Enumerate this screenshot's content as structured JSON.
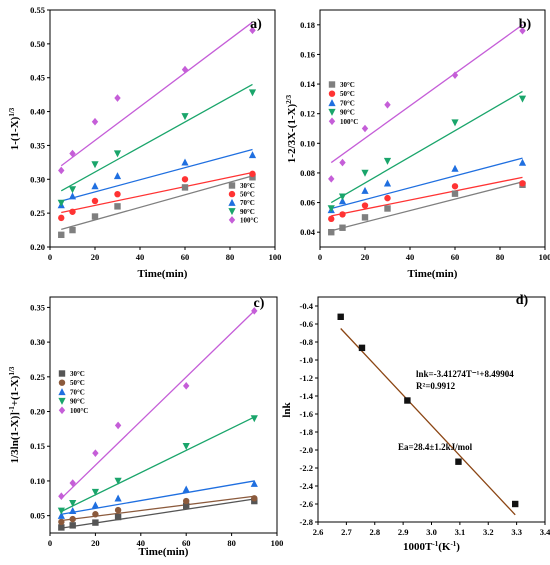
{
  "chart_data": [
    {
      "panel": "a)",
      "type": "scatter",
      "xlabel": "Time(min)",
      "ylabel": "1-(1-X)^(1/3)",
      "xlim": [
        0,
        100
      ],
      "ylim": [
        0.2,
        0.55
      ],
      "xticks": [
        "0",
        "20",
        "40",
        "60",
        "80",
        "100"
      ],
      "yticks": [
        "0.20",
        "0.25",
        "0.30",
        "0.35",
        "0.40",
        "0.45",
        "0.50",
        "0.55"
      ],
      "legend_position": "bottom-right",
      "series": [
        {
          "name": "30°C",
          "color": "#7f7f7f",
          "marker": "square",
          "x": [
            5,
            10,
            20,
            30,
            60,
            90
          ],
          "y": [
            0.218,
            0.225,
            0.245,
            0.26,
            0.288,
            0.303
          ],
          "fit": [
            [
              5,
              0.226
            ],
            [
              90,
              0.305
            ]
          ]
        },
        {
          "name": "50°C",
          "color": "#ff3333",
          "marker": "circle",
          "x": [
            5,
            10,
            20,
            30,
            60,
            90
          ],
          "y": [
            0.243,
            0.252,
            0.268,
            0.278,
            0.3,
            0.308
          ],
          "fit": [
            [
              5,
              0.251
            ],
            [
              90,
              0.31
            ]
          ]
        },
        {
          "name": "70°C",
          "color": "#1f6fe0",
          "marker": "triangle-up",
          "x": [
            5,
            10,
            20,
            30,
            60,
            90
          ],
          "y": [
            0.262,
            0.275,
            0.29,
            0.305,
            0.325,
            0.336
          ],
          "fit": [
            [
              5,
              0.268
            ],
            [
              90,
              0.344
            ]
          ]
        },
        {
          "name": "90°C",
          "color": "#1aa56b",
          "marker": "triangle-down",
          "x": [
            5,
            10,
            20,
            30,
            60,
            90
          ],
          "y": [
            0.265,
            0.285,
            0.322,
            0.338,
            0.393,
            0.428
          ],
          "fit": [
            [
              5,
              0.283
            ],
            [
              90,
              0.44
            ]
          ]
        },
        {
          "name": "100°C",
          "color": "#c55ed8",
          "marker": "diamond",
          "x": [
            5,
            10,
            20,
            30,
            60,
            90
          ],
          "y": [
            0.313,
            0.338,
            0.385,
            0.42,
            0.462,
            0.52
          ],
          "fit": [
            [
              5,
              0.32
            ],
            [
              90,
              0.532
            ]
          ]
        }
      ]
    },
    {
      "panel": "b)",
      "type": "scatter",
      "xlabel": "Time(min)",
      "ylabel": "1-2/3X-(1-X)^(2/3)",
      "xlim": [
        0,
        100
      ],
      "ylim": [
        0.03,
        0.19
      ],
      "xticks": [
        "0",
        "20",
        "40",
        "60",
        "80",
        "100"
      ],
      "yticks": [
        "0.04",
        "0.06",
        "0.08",
        "0.10",
        "0.12",
        "0.14",
        "0.16",
        "0.18"
      ],
      "legend_position": "top-left",
      "series": [
        {
          "name": "30°C",
          "color": "#7f7f7f",
          "marker": "square",
          "x": [
            5,
            10,
            20,
            30,
            60,
            90
          ],
          "y": [
            0.04,
            0.043,
            0.05,
            0.056,
            0.066,
            0.072
          ],
          "fit": [
            [
              5,
              0.041
            ],
            [
              90,
              0.074
            ]
          ]
        },
        {
          "name": "50°C",
          "color": "#ff3333",
          "marker": "circle",
          "x": [
            5,
            10,
            20,
            30,
            60,
            90
          ],
          "y": [
            0.049,
            0.052,
            0.058,
            0.063,
            0.071,
            0.073
          ],
          "fit": [
            [
              5,
              0.051
            ],
            [
              90,
              0.077
            ]
          ]
        },
        {
          "name": "70°C",
          "color": "#1f6fe0",
          "marker": "triangle-up",
          "x": [
            5,
            10,
            20,
            30,
            60,
            90
          ],
          "y": [
            0.055,
            0.061,
            0.068,
            0.073,
            0.083,
            0.087
          ],
          "fit": [
            [
              5,
              0.056
            ],
            [
              90,
              0.09
            ]
          ]
        },
        {
          "name": "90°C",
          "color": "#1aa56b",
          "marker": "triangle-down",
          "x": [
            5,
            10,
            20,
            30,
            60,
            90
          ],
          "y": [
            0.056,
            0.064,
            0.08,
            0.088,
            0.114,
            0.13
          ],
          "fit": [
            [
              5,
              0.06
            ],
            [
              90,
              0.135
            ]
          ]
        },
        {
          "name": "100°C",
          "color": "#c55ed8",
          "marker": "diamond",
          "x": [
            5,
            10,
            20,
            30,
            60,
            90
          ],
          "y": [
            0.076,
            0.087,
            0.11,
            0.126,
            0.146,
            0.176
          ],
          "fit": [
            [
              5,
              0.087
            ],
            [
              90,
              0.18
            ]
          ]
        }
      ]
    },
    {
      "panel": "c)",
      "type": "scatter",
      "xlabel": "Time(min)",
      "ylabel": "1/3ln(1-X)]^-1+(1-X)^(1/3)",
      "xlim": [
        0,
        100
      ],
      "ylim": [
        0.025,
        0.365
      ],
      "xticks": [
        "0",
        "20",
        "40",
        "60",
        "80",
        "100"
      ],
      "yticks": [
        "0.05",
        "0.10",
        "0.15",
        "0.20",
        "0.25",
        "0.30",
        "0.35"
      ],
      "legend_position": "middle-left",
      "series": [
        {
          "name": "30°C",
          "color": "#555555",
          "marker": "square",
          "x": [
            5,
            10,
            20,
            30,
            60,
            90
          ],
          "y": [
            0.033,
            0.036,
            0.04,
            0.048,
            0.064,
            0.071
          ],
          "fit": [
            [
              5,
              0.032
            ],
            [
              90,
              0.074
            ]
          ]
        },
        {
          "name": "50°C",
          "color": "#8b5a3c",
          "marker": "circle",
          "x": [
            5,
            10,
            20,
            30,
            60,
            90
          ],
          "y": [
            0.041,
            0.045,
            0.052,
            0.058,
            0.071,
            0.075
          ],
          "fit": [
            [
              5,
              0.043
            ],
            [
              90,
              0.078
            ]
          ]
        },
        {
          "name": "70°C",
          "color": "#1f6fe0",
          "marker": "triangle-up",
          "x": [
            5,
            10,
            20,
            30,
            60,
            90
          ],
          "y": [
            0.05,
            0.057,
            0.065,
            0.075,
            0.088,
            0.096
          ],
          "fit": [
            [
              5,
              0.052
            ],
            [
              90,
              0.1
            ]
          ]
        },
        {
          "name": "90°C",
          "color": "#1aa56b",
          "marker": "triangle-down",
          "x": [
            5,
            10,
            20,
            30,
            60,
            90
          ],
          "y": [
            0.057,
            0.068,
            0.084,
            0.1,
            0.15,
            0.19
          ],
          "fit": [
            [
              5,
              0.056
            ],
            [
              90,
              0.192
            ]
          ]
        },
        {
          "name": "100°C",
          "color": "#c55ed8",
          "marker": "diamond",
          "x": [
            5,
            10,
            20,
            30,
            60,
            90
          ],
          "y": [
            0.078,
            0.097,
            0.14,
            0.18,
            0.237,
            0.345
          ],
          "fit": [
            [
              5,
              0.075
            ],
            [
              90,
              0.345
            ]
          ]
        }
      ]
    },
    {
      "panel": "d)",
      "type": "scatter",
      "xlabel": "1000T^-1(K^-1)",
      "ylabel": "lnk",
      "xlim": [
        2.6,
        3.4
      ],
      "ylim": [
        -2.8,
        -0.3
      ],
      "xticks": [
        "2.6",
        "2.7",
        "2.8",
        "2.9",
        "3.0",
        "3.1",
        "3.2",
        "3.3",
        "3.4"
      ],
      "yticks": [
        "-0.4",
        "-0.6",
        "-0.8",
        "-1.0",
        "-1.2",
        "-1.4",
        "-1.6",
        "-1.8",
        "-2.0",
        "-2.2",
        "-2.4",
        "-2.6",
        "-2.8"
      ],
      "series": [
        {
          "name": "",
          "color": "#111111",
          "marker": "square",
          "x": [
            2.68,
            2.755,
            2.915,
            3.095,
            3.295
          ],
          "y": [
            -0.52,
            -0.865,
            -1.45,
            -2.13,
            -2.6
          ],
          "fit": [
            [
              2.68,
              -0.65
            ],
            [
              3.295,
              -2.72
            ]
          ],
          "fit_color": "#8b4513"
        }
      ],
      "annotations": [
        "lnk=-3.41274T⁻¹+8.49904",
        "R²=0.9912",
        "Ea=28.4±1.2kJ/mol"
      ]
    }
  ]
}
